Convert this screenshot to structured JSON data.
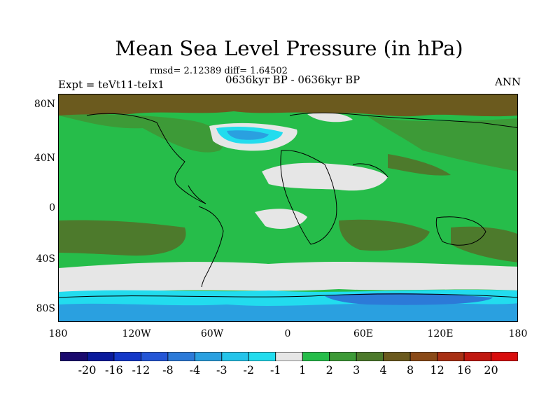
{
  "title": "Mean Sea Level Pressure (in hPa)",
  "stats": "rmsd= 2.12389 diff= 1.64502",
  "experiment": "Expt = teVt11-teIx1",
  "period": "0636kyr BP - 0636kyr BP",
  "season": "ANN",
  "lat_ticks": [
    "80N",
    "40N",
    "0",
    "40S",
    "80S"
  ],
  "lon_ticks": [
    "180",
    "120W",
    "60W",
    "0",
    "60E",
    "120E",
    "180"
  ],
  "colorbar": {
    "labels": [
      "-20",
      "-16",
      "-12",
      "-8",
      "-4",
      "-3",
      "-2",
      "-1",
      "1",
      "2",
      "3",
      "4",
      "8",
      "12",
      "16",
      "20"
    ],
    "colors": [
      "#1a0a6e",
      "#0a1a9c",
      "#1438c8",
      "#2456d6",
      "#2c7ad8",
      "#2aa0e0",
      "#25c4ea",
      "#22dcee",
      "#e6e6e6",
      "#26bd4a",
      "#3d9a37",
      "#4d7a2c",
      "#6b5a1e",
      "#8a4a18",
      "#a83014",
      "#c01810",
      "#d80d0d"
    ]
  },
  "palette": {
    "green": "#26bd4a",
    "dark_green": "#3d9a37",
    "olive": "#4d7a2c",
    "brown": "#6b5a1e",
    "grey": "#e6e6e6",
    "cyan": "#22dcee",
    "light_blue": "#2aa0e0",
    "blue": "#2c7ad8"
  }
}
